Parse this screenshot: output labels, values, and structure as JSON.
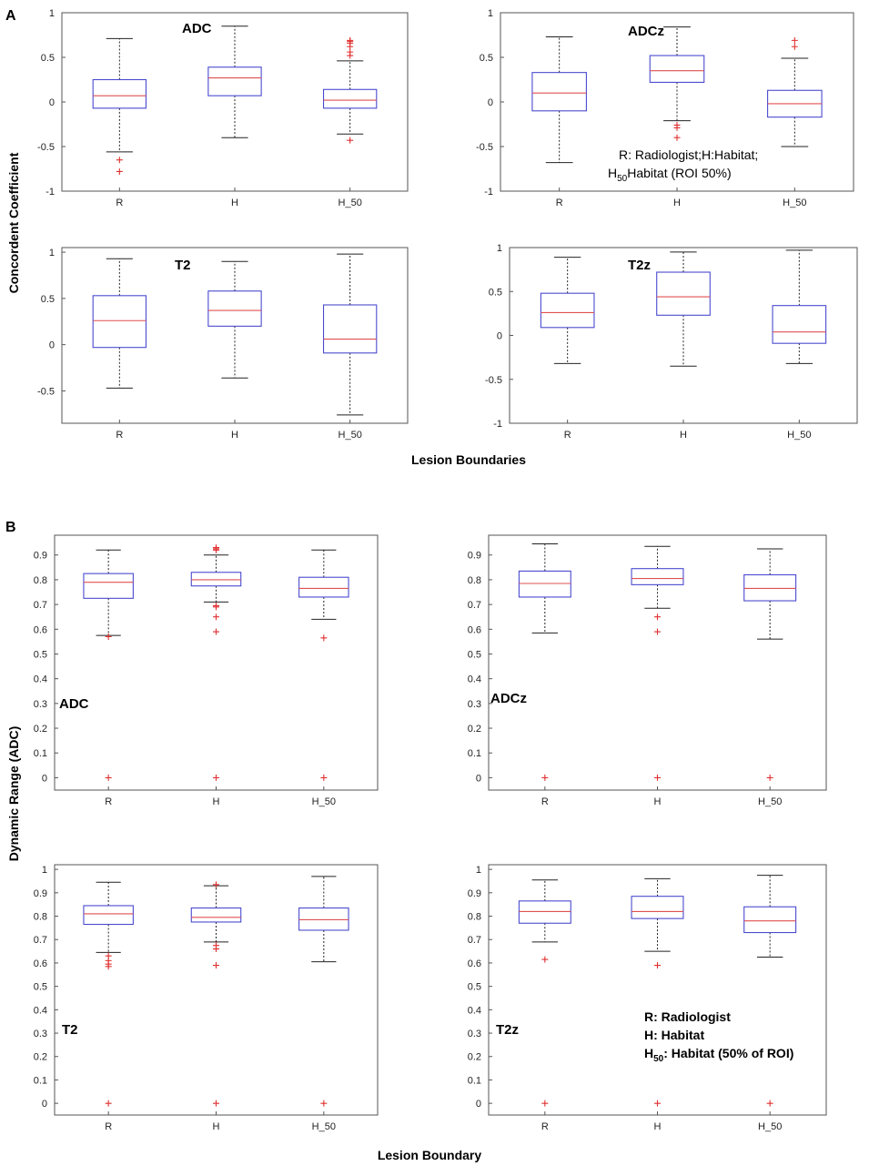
{
  "panels": {
    "A": {
      "letter": "A",
      "ylabel": "Concordent Coefficient",
      "xlabel": "Lesion Boundaries",
      "legend": {
        "line1": "R: Radiologist;H:Habitat;",
        "line2_prefix": "H",
        "line2_sub": "50",
        "line2_rest": "Habitat (ROI 50%)"
      }
    },
    "B": {
      "letter": "B",
      "ylabel": "Dynamic Range (ADC)",
      "xlabel": "Lesion Boundary",
      "legend": {
        "line1": "R: Radiologist",
        "line2": "H: Habitat",
        "line3_prefix": "H",
        "line3_sub": "50",
        "line3_rest": ": Habitat (50% of ROI)"
      }
    }
  },
  "colors": {
    "box": "#4a4ad0",
    "median": "#e05050",
    "whisker": "#222222",
    "outlier": "#e03030",
    "frame": "#555555"
  },
  "chart_data": [
    {
      "type": "box",
      "panel": "A",
      "title": "ADC",
      "categories": [
        "R",
        "H",
        "H_50"
      ],
      "ylim": [
        -1,
        1
      ],
      "yticks": [
        -1,
        -0.5,
        0,
        0.5,
        1
      ],
      "boxes": [
        {
          "whislo": -0.56,
          "q1": -0.07,
          "med": 0.07,
          "q3": 0.25,
          "whishi": 0.71,
          "fliers": [
            -0.65,
            -0.78
          ]
        },
        {
          "whislo": -0.4,
          "q1": 0.07,
          "med": 0.27,
          "q3": 0.39,
          "whishi": 0.85,
          "fliers": []
        },
        {
          "whislo": -0.36,
          "q1": -0.07,
          "med": 0.02,
          "q3": 0.14,
          "whishi": 0.46,
          "fliers": [
            0.52,
            0.56,
            0.62,
            0.66,
            0.68,
            0.69,
            -0.43
          ]
        }
      ]
    },
    {
      "type": "box",
      "panel": "A",
      "title": "ADCz",
      "categories": [
        "R",
        "H",
        "H_50"
      ],
      "ylim": [
        -1,
        1
      ],
      "yticks": [
        -1,
        -0.5,
        0,
        0.5,
        1
      ],
      "boxes": [
        {
          "whislo": -0.68,
          "q1": -0.1,
          "med": 0.1,
          "q3": 0.33,
          "whishi": 0.73,
          "fliers": []
        },
        {
          "whislo": -0.21,
          "q1": 0.22,
          "med": 0.35,
          "q3": 0.52,
          "whishi": 0.84,
          "fliers": [
            -0.26,
            -0.29,
            -0.4
          ]
        },
        {
          "whislo": -0.5,
          "q1": -0.17,
          "med": -0.02,
          "q3": 0.13,
          "whishi": 0.49,
          "fliers": [
            0.62,
            0.69
          ]
        }
      ]
    },
    {
      "type": "box",
      "panel": "A",
      "title": "T2",
      "categories": [
        "R",
        "H",
        "H_50"
      ],
      "ylim": [
        -0.85,
        1.05
      ],
      "yticks": [
        -0.5,
        0,
        0.5,
        1
      ],
      "boxes": [
        {
          "whislo": -0.47,
          "q1": -0.03,
          "med": 0.26,
          "q3": 0.53,
          "whishi": 0.93,
          "fliers": []
        },
        {
          "whislo": -0.36,
          "q1": 0.2,
          "med": 0.37,
          "q3": 0.58,
          "whishi": 0.9,
          "fliers": []
        },
        {
          "whislo": -0.76,
          "q1": -0.09,
          "med": 0.06,
          "q3": 0.43,
          "whishi": 0.98,
          "fliers": []
        }
      ]
    },
    {
      "type": "box",
      "panel": "A",
      "title": "T2z",
      "categories": [
        "R",
        "H",
        "H_50"
      ],
      "ylim": [
        -1,
        1
      ],
      "yticks": [
        -1,
        -0.5,
        0,
        0.5,
        1
      ],
      "boxes": [
        {
          "whislo": -0.32,
          "q1": 0.09,
          "med": 0.26,
          "q3": 0.48,
          "whishi": 0.89,
          "fliers": []
        },
        {
          "whislo": -0.35,
          "q1": 0.23,
          "med": 0.44,
          "q3": 0.72,
          "whishi": 0.95,
          "fliers": []
        },
        {
          "whislo": -0.32,
          "q1": -0.09,
          "med": 0.04,
          "q3": 0.34,
          "whishi": 0.97,
          "fliers": []
        }
      ]
    },
    {
      "type": "box",
      "panel": "B",
      "title": "ADC",
      "categories": [
        "R",
        "H",
        "H_50"
      ],
      "ylim": [
        -0.05,
        0.98
      ],
      "yticks": [
        0,
        0.1,
        0.2,
        0.3,
        0.4,
        0.5,
        0.6,
        0.7,
        0.8,
        0.9
      ],
      "boxes": [
        {
          "whislo": 0.575,
          "q1": 0.725,
          "med": 0.79,
          "q3": 0.825,
          "whishi": 0.92,
          "fliers": [
            0.57,
            0
          ]
        },
        {
          "whislo": 0.71,
          "q1": 0.775,
          "med": 0.8,
          "q3": 0.83,
          "whishi": 0.9,
          "fliers": [
            0.92,
            0.925,
            0.93,
            0.695,
            0.69,
            0.65,
            0.59,
            0
          ]
        },
        {
          "whislo": 0.64,
          "q1": 0.73,
          "med": 0.765,
          "q3": 0.81,
          "whishi": 0.92,
          "fliers": [
            0.565,
            0
          ]
        }
      ]
    },
    {
      "type": "box",
      "panel": "B",
      "title": "ADCz",
      "categories": [
        "R",
        "H",
        "H_50"
      ],
      "ylim": [
        -0.05,
        0.98
      ],
      "yticks": [
        0,
        0.1,
        0.2,
        0.3,
        0.4,
        0.5,
        0.6,
        0.7,
        0.8,
        0.9
      ],
      "boxes": [
        {
          "whislo": 0.585,
          "q1": 0.73,
          "med": 0.785,
          "q3": 0.835,
          "whishi": 0.945,
          "fliers": [
            0
          ]
        },
        {
          "whislo": 0.685,
          "q1": 0.78,
          "med": 0.805,
          "q3": 0.845,
          "whishi": 0.935,
          "fliers": [
            0.65,
            0.59,
            0
          ]
        },
        {
          "whislo": 0.56,
          "q1": 0.715,
          "med": 0.765,
          "q3": 0.82,
          "whishi": 0.925,
          "fliers": [
            0
          ]
        }
      ]
    },
    {
      "type": "box",
      "panel": "B",
      "title": "T2",
      "categories": [
        "R",
        "H",
        "H_50"
      ],
      "ylim": [
        -0.05,
        1.02
      ],
      "yticks": [
        0,
        0.1,
        0.2,
        0.3,
        0.4,
        0.5,
        0.6,
        0.7,
        0.8,
        0.9,
        1
      ],
      "boxes": [
        {
          "whislo": 0.645,
          "q1": 0.765,
          "med": 0.81,
          "q3": 0.845,
          "whishi": 0.945,
          "fliers": [
            0.63,
            0.61,
            0.595,
            0.585,
            0
          ]
        },
        {
          "whislo": 0.69,
          "q1": 0.775,
          "med": 0.795,
          "q3": 0.835,
          "whishi": 0.93,
          "fliers": [
            0.935,
            0.675,
            0.66,
            0.59,
            0
          ]
        },
        {
          "whislo": 0.605,
          "q1": 0.74,
          "med": 0.785,
          "q3": 0.835,
          "whishi": 0.97,
          "fliers": [
            0
          ]
        }
      ]
    },
    {
      "type": "box",
      "panel": "B",
      "title": "T2z",
      "categories": [
        "R",
        "H",
        "H_50"
      ],
      "ylim": [
        -0.05,
        1.02
      ],
      "yticks": [
        0,
        0.1,
        0.2,
        0.3,
        0.4,
        0.5,
        0.6,
        0.7,
        0.8,
        0.9,
        1
      ],
      "boxes": [
        {
          "whislo": 0.69,
          "q1": 0.77,
          "med": 0.82,
          "q3": 0.865,
          "whishi": 0.955,
          "fliers": [
            0.615,
            0
          ]
        },
        {
          "whislo": 0.65,
          "q1": 0.79,
          "med": 0.82,
          "q3": 0.885,
          "whishi": 0.96,
          "fliers": [
            0.59,
            0
          ]
        },
        {
          "whislo": 0.625,
          "q1": 0.73,
          "med": 0.78,
          "q3": 0.84,
          "whishi": 0.975,
          "fliers": [
            0
          ]
        }
      ]
    }
  ]
}
